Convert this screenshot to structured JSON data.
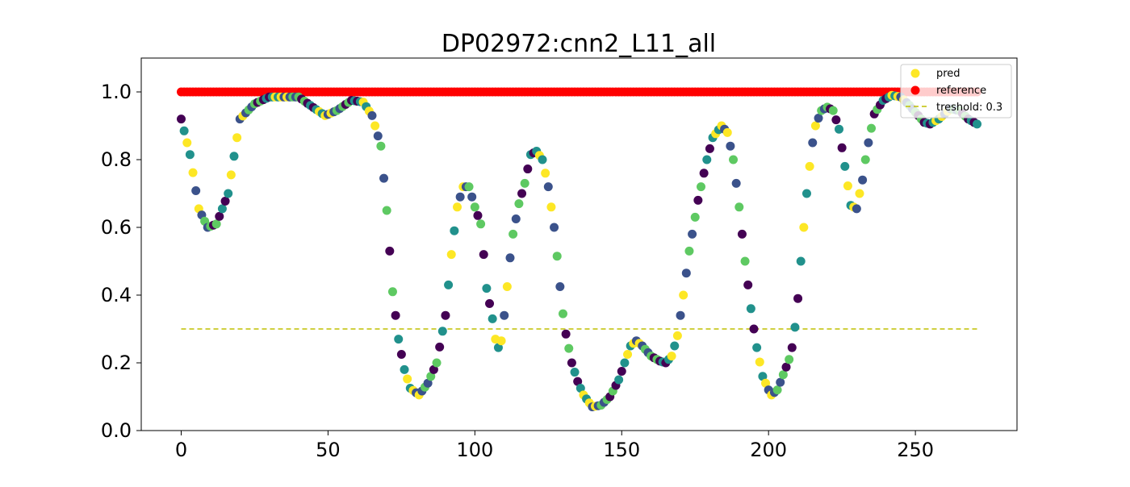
{
  "chart_data": {
    "type": "scatter",
    "title": "DP02972:cnn2_L11_all",
    "xlabel": "",
    "ylabel": "",
    "xlim": [
      -13.6,
      284.6
    ],
    "ylim": [
      0.0,
      1.1
    ],
    "x_ticks": [
      0,
      50,
      100,
      150,
      200,
      250
    ],
    "x_tick_labels": [
      "0",
      "50",
      "100",
      "150",
      "200",
      "250"
    ],
    "y_ticks": [
      0.0,
      0.2,
      0.4,
      0.6,
      0.8,
      1.0
    ],
    "y_tick_labels": [
      "0.0",
      "0.2",
      "0.4",
      "0.6",
      "0.8",
      "1.0"
    ],
    "grid": false,
    "legend_position": "top-right",
    "colormap": [
      "#440154",
      "#3b528b",
      "#21918c",
      "#5ec962",
      "#fde725"
    ],
    "series": [
      {
        "name": "pred",
        "kind": "scatter",
        "legend_color": "#fde725",
        "knots": [
          [
            0,
            0.92
          ],
          [
            3,
            0.815
          ],
          [
            6,
            0.655
          ],
          [
            9,
            0.6
          ],
          [
            12,
            0.61
          ],
          [
            16,
            0.7
          ],
          [
            20,
            0.92
          ],
          [
            25,
            0.965
          ],
          [
            30,
            0.985
          ],
          [
            40,
            0.985
          ],
          [
            44,
            0.96
          ],
          [
            49,
            0.93
          ],
          [
            53,
            0.945
          ],
          [
            58,
            0.975
          ],
          [
            62,
            0.97
          ],
          [
            65,
            0.93
          ],
          [
            68,
            0.84
          ],
          [
            70,
            0.65
          ],
          [
            72,
            0.41
          ],
          [
            74,
            0.27
          ],
          [
            76,
            0.18
          ],
          [
            78,
            0.125
          ],
          [
            81,
            0.105
          ],
          [
            84,
            0.14
          ],
          [
            87,
            0.2
          ],
          [
            90,
            0.34
          ],
          [
            92,
            0.52
          ],
          [
            94,
            0.66
          ],
          [
            96,
            0.72
          ],
          [
            98,
            0.72
          ],
          [
            100,
            0.66
          ],
          [
            102,
            0.61
          ],
          [
            103,
            0.52
          ],
          [
            104,
            0.42
          ],
          [
            106,
            0.33
          ],
          [
            107,
            0.27
          ],
          [
            108,
            0.245
          ],
          [
            109,
            0.265
          ],
          [
            110,
            0.34
          ],
          [
            111,
            0.425
          ],
          [
            112,
            0.51
          ],
          [
            113,
            0.58
          ],
          [
            115,
            0.67
          ],
          [
            117,
            0.73
          ],
          [
            119,
            0.815
          ],
          [
            121,
            0.825
          ],
          [
            123,
            0.8
          ],
          [
            125,
            0.72
          ],
          [
            127,
            0.6
          ],
          [
            128,
            0.515
          ],
          [
            129,
            0.425
          ],
          [
            130,
            0.345
          ],
          [
            131,
            0.285
          ],
          [
            133,
            0.2
          ],
          [
            135,
            0.145
          ],
          [
            137,
            0.105
          ],
          [
            140,
            0.07
          ],
          [
            143,
            0.075
          ],
          [
            146,
            0.1
          ],
          [
            149,
            0.15
          ],
          [
            151,
            0.2
          ],
          [
            153,
            0.25
          ],
          [
            155,
            0.265
          ],
          [
            157,
            0.25
          ],
          [
            160,
            0.22
          ],
          [
            163,
            0.205
          ],
          [
            165,
            0.2
          ],
          [
            167,
            0.22
          ],
          [
            169,
            0.28
          ],
          [
            171,
            0.4
          ],
          [
            173,
            0.53
          ],
          [
            176,
            0.68
          ],
          [
            179,
            0.8
          ],
          [
            181,
            0.865
          ],
          [
            184,
            0.9
          ],
          [
            186,
            0.88
          ],
          [
            188,
            0.8
          ],
          [
            190,
            0.66
          ],
          [
            192,
            0.5
          ],
          [
            194,
            0.36
          ],
          [
            195,
            0.3
          ],
          [
            196,
            0.245
          ],
          [
            198,
            0.16
          ],
          [
            200,
            0.12
          ],
          [
            201,
            0.105
          ],
          [
            203,
            0.12
          ],
          [
            205,
            0.165
          ],
          [
            207,
            0.21
          ],
          [
            208,
            0.245
          ],
          [
            209,
            0.305
          ],
          [
            210,
            0.39
          ],
          [
            211,
            0.5
          ],
          [
            212,
            0.6
          ],
          [
            213,
            0.7
          ],
          [
            214,
            0.78
          ],
          [
            215,
            0.85
          ],
          [
            216,
            0.9
          ],
          [
            218,
            0.945
          ],
          [
            220,
            0.955
          ],
          [
            222,
            0.945
          ],
          [
            224,
            0.89
          ],
          [
            226,
            0.78
          ],
          [
            228,
            0.665
          ],
          [
            230,
            0.655
          ],
          [
            231,
            0.7
          ],
          [
            232,
            0.74
          ],
          [
            233,
            0.8
          ],
          [
            234,
            0.85
          ],
          [
            236,
            0.935
          ],
          [
            239,
            0.975
          ],
          [
            242,
            0.99
          ],
          [
            245,
            0.985
          ],
          [
            248,
            0.96
          ],
          [
            250,
            0.94
          ],
          [
            253,
            0.91
          ],
          [
            255,
            0.905
          ],
          [
            258,
            0.92
          ],
          [
            262,
            0.95
          ],
          [
            265,
            0.945
          ],
          [
            268,
            0.92
          ],
          [
            271,
            0.905
          ]
        ],
        "x_start": 0,
        "x_end": 271
      },
      {
        "name": "reference",
        "kind": "scatter",
        "color": "#ff0000",
        "y": 1.0,
        "x_start": 0,
        "x_end": 271
      },
      {
        "name": "treshold: 0.3",
        "kind": "line",
        "color": "#bfbf00",
        "dash": true,
        "x": [
          0,
          271
        ],
        "y": [
          0.3,
          0.3
        ]
      }
    ]
  }
}
